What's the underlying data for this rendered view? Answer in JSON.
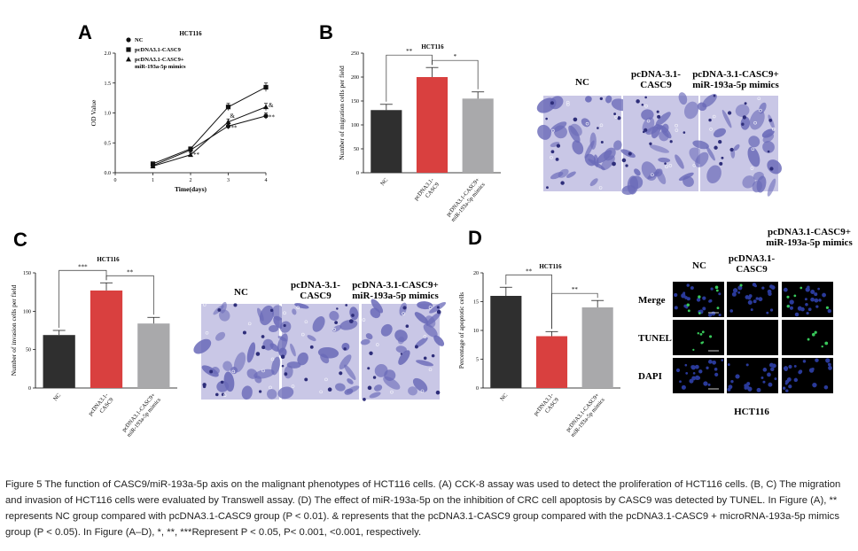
{
  "caption": "Figure 5 The function of CASC9/miR-193a-5p axis on the malignant phenotypes of HCT116 cells. (A) CCK-8 assay was used to detect the proliferation of HCT116 cells. (B, C) The migration and invasion of HCT116 cells were evaluated by Transwell assay. (D) The effect of miR-193a-5p on the inhibition of CRC cell apoptosis by CASC9 was detected by TUNEL. In Figure (A), ** represents NC group compared with pcDNA3.1-CASC9 group (P < 0.01). & represents that the pcDNA3.1-CASC9 group compared with the pcDNA3.1-CASC9 + microRNA-193a-5p mimics group (P < 0.05). In Figure (A–D), *, **, ***Represent P < 0.05, P< 0.001, <0.001, respectively.",
  "colors": {
    "dark": "#2f2f2f",
    "red": "#d9403f",
    "gray": "#a9a9ab",
    "stain": "#6a6ab8",
    "dapi": "#2a3a9a",
    "tunel": "#38c85a"
  },
  "chart_data": [
    {
      "panel": "A",
      "type": "line",
      "title": "HCT116",
      "xlabel": "Time(days)",
      "ylabel": "OD Value",
      "x": [
        1,
        2,
        3,
        4
      ],
      "x_tick_labels": [
        "0",
        "1",
        "2",
        "3",
        "4"
      ],
      "ylim": [
        0,
        2.0
      ],
      "y_ticks": [
        "0.0",
        "0.5",
        "1.0",
        "1.5",
        "2.0"
      ],
      "series": [
        {
          "name": "NC",
          "marker": "circle",
          "values": [
            0.12,
            0.38,
            0.78,
            0.95
          ],
          "err": [
            0.02,
            0.03,
            0.05,
            0.05
          ]
        },
        {
          "name": "pcDNA3.1-CASC9",
          "marker": "square",
          "values": [
            0.15,
            0.4,
            1.1,
            1.43
          ],
          "err": [
            0.02,
            0.03,
            0.06,
            0.07
          ]
        },
        {
          "name": "pcDNA3.1-CASC9+ miR-193a-5p mimics",
          "marker": "triangle",
          "values": [
            0.11,
            0.3,
            0.85,
            1.1
          ],
          "err": [
            0.02,
            0.03,
            0.05,
            0.06
          ]
        }
      ],
      "annotations": [
        "**",
        "**",
        "**",
        "&",
        "&"
      ]
    },
    {
      "panel": "B",
      "type": "bar",
      "title": "HCT116",
      "ylabel": "Number of migration cells per field",
      "categories": [
        "NC",
        "pcDNA3.1-CASC9",
        "pcDNA3.1-CASC9+ miR-193a-5p mimics"
      ],
      "values": [
        131,
        200,
        155
      ],
      "err": [
        12,
        20,
        14
      ],
      "ylim": [
        0,
        250
      ],
      "y_ticks": [
        "0",
        "50",
        "100",
        "150",
        "200",
        "250"
      ],
      "significance": [
        {
          "from": 0,
          "to": 1,
          "label": "**"
        },
        {
          "from": 1,
          "to": 2,
          "label": "*"
        }
      ]
    },
    {
      "panel": "C",
      "type": "bar",
      "title": "HCT116",
      "ylabel": "Number of invasion cells per field",
      "categories": [
        "NC",
        "pcDNA3.1-CASC9",
        "pcDNA3.1-CASC9+ miR-193a-5p mimics"
      ],
      "values": [
        69,
        127,
        84
      ],
      "err": [
        6,
        10,
        8
      ],
      "ylim": [
        0,
        150
      ],
      "y_ticks": [
        "0",
        "50",
        "100",
        "150"
      ],
      "significance": [
        {
          "from": 0,
          "to": 1,
          "label": "***"
        },
        {
          "from": 1,
          "to": 2,
          "label": "**"
        }
      ]
    },
    {
      "panel": "D",
      "type": "bar",
      "title": "HCT116",
      "ylabel": "Percentage of apoptotic cells",
      "categories": [
        "NC",
        "pcDNA3.1-CASC9",
        "pcDNA3.1-CASC9+ miR-193a-5p mimics"
      ],
      "values": [
        16,
        9,
        14
      ],
      "err": [
        1.5,
        0.8,
        1.2
      ],
      "ylim": [
        0,
        20
      ],
      "y_ticks": [
        "0",
        "5",
        "10",
        "15",
        "20"
      ],
      "significance": [
        {
          "from": 0,
          "to": 1,
          "label": "**"
        },
        {
          "from": 1,
          "to": 2,
          "label": "**"
        }
      ]
    }
  ],
  "image_panels": {
    "B_headers": [
      "NC",
      "pcDNA-3.1-CASC9",
      "pcDNA-3.1-CASC9+ miR-193a-5p mimics"
    ],
    "C_headers": [
      "NC",
      "pcDNA-3.1-CASC9",
      "pcDNA-3.1-CASC9+ miR-193a-5p mimics"
    ],
    "D_headers": [
      "NC",
      "pcDNA3.1-CASC9",
      "pcDNA3.1-CASC9+ miR-193a-5p mimics"
    ],
    "D_rows": [
      "Merge",
      "TUNEL",
      "DAPI"
    ],
    "D_footer": "HCT116"
  },
  "panel_letters": [
    "A",
    "B",
    "C",
    "D"
  ]
}
